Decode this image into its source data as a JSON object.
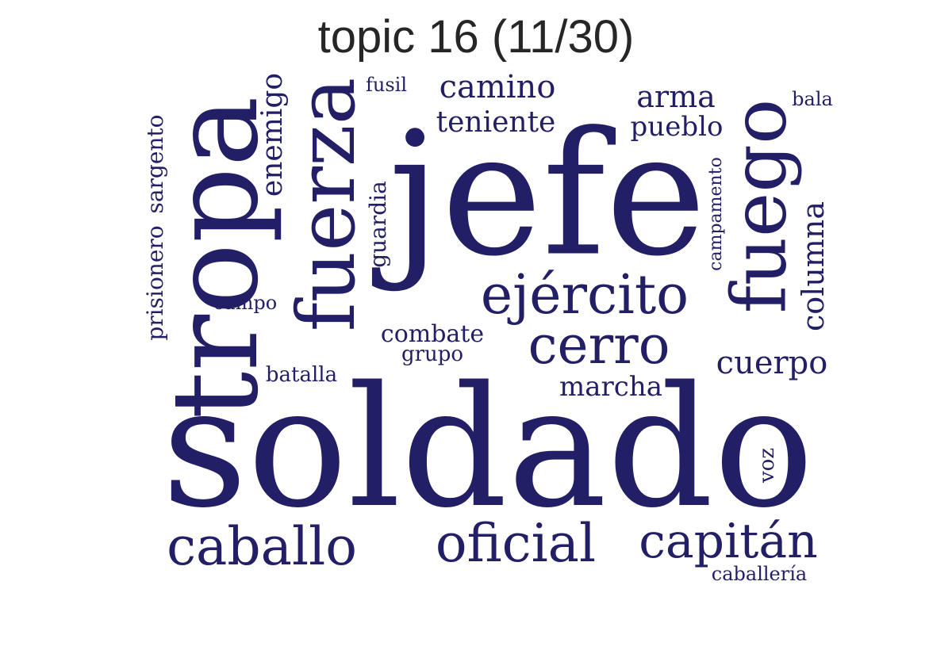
{
  "title": "topic 16 (11/30)",
  "color": "#221f66",
  "words": [
    {
      "id": "soldado",
      "text": "soldado",
      "weight": 1.0,
      "rotated": false
    },
    {
      "id": "jefe",
      "text": "jefe",
      "weight": 0.9,
      "rotated": false
    },
    {
      "id": "tropa",
      "text": "tropa",
      "weight": 0.62,
      "rotated": true
    },
    {
      "id": "fuerza",
      "text": "fuerza",
      "weight": 0.42,
      "rotated": true
    },
    {
      "id": "fuego",
      "text": "fuego",
      "weight": 0.4,
      "rotated": true
    },
    {
      "id": "ejercito",
      "text": "ejército",
      "weight": 0.3,
      "rotated": false
    },
    {
      "id": "cerro",
      "text": "cerro",
      "weight": 0.28,
      "rotated": false
    },
    {
      "id": "caballo",
      "text": "caballo",
      "weight": 0.26,
      "rotated": false
    },
    {
      "id": "oficial",
      "text": "oficial",
      "weight": 0.26,
      "rotated": false
    },
    {
      "id": "capitan",
      "text": "capitán",
      "weight": 0.24,
      "rotated": false
    },
    {
      "id": "camino",
      "text": "camino",
      "weight": 0.14,
      "rotated": false
    },
    {
      "id": "teniente",
      "text": "teniente",
      "weight": 0.12,
      "rotated": false
    },
    {
      "id": "enemigo",
      "text": "enemigo",
      "weight": 0.12,
      "rotated": true
    },
    {
      "id": "arma",
      "text": "arma",
      "weight": 0.11,
      "rotated": false
    },
    {
      "id": "pueblo",
      "text": "pueblo",
      "weight": 0.11,
      "rotated": false
    },
    {
      "id": "columna",
      "text": "columna",
      "weight": 0.11,
      "rotated": true
    },
    {
      "id": "cuerpo",
      "text": "cuerpo",
      "weight": 0.11,
      "rotated": false
    },
    {
      "id": "marcha",
      "text": "marcha",
      "weight": 0.1,
      "rotated": false
    },
    {
      "id": "prisionero",
      "text": "prisionero",
      "weight": 0.09,
      "rotated": true
    },
    {
      "id": "sargento",
      "text": "sargento",
      "weight": 0.09,
      "rotated": true
    },
    {
      "id": "combate",
      "text": "combate",
      "weight": 0.09,
      "rotated": false
    },
    {
      "id": "guardia",
      "text": "guardia",
      "weight": 0.08,
      "rotated": true
    },
    {
      "id": "campamento",
      "text": "campamento",
      "weight": 0.07,
      "rotated": true
    },
    {
      "id": "batalla",
      "text": "batalla",
      "weight": 0.07,
      "rotated": false
    },
    {
      "id": "grupo",
      "text": "grupo",
      "weight": 0.07,
      "rotated": false
    },
    {
      "id": "campo",
      "text": "campo",
      "weight": 0.07,
      "rotated": false
    },
    {
      "id": "caballeria",
      "text": "caballería",
      "weight": 0.07,
      "rotated": false
    },
    {
      "id": "fusil",
      "text": "fusil",
      "weight": 0.06,
      "rotated": false
    },
    {
      "id": "bala",
      "text": "bala",
      "weight": 0.06,
      "rotated": false
    },
    {
      "id": "voz",
      "text": "voz",
      "weight": 0.06,
      "rotated": true
    }
  ]
}
